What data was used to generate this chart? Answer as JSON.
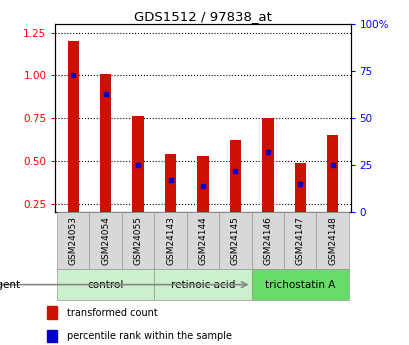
{
  "title": "GDS1512 / 97838_at",
  "samples": [
    "GSM24053",
    "GSM24054",
    "GSM24055",
    "GSM24143",
    "GSM24144",
    "GSM24145",
    "GSM24146",
    "GSM24147",
    "GSM24148"
  ],
  "red_values": [
    1.2,
    1.01,
    0.76,
    0.54,
    0.53,
    0.62,
    0.75,
    0.49,
    0.65
  ],
  "blue_pct": [
    73,
    63,
    25,
    17,
    14,
    22,
    32,
    15,
    25
  ],
  "group_labels": [
    "control",
    "retinoic acid",
    "trichostatin A"
  ],
  "group_ranges": [
    [
      0,
      3
    ],
    [
      3,
      6
    ],
    [
      6,
      9
    ]
  ],
  "group_colors": [
    "#ccf0cc",
    "#ccf0cc",
    "#66dd66"
  ],
  "ylim_left": [
    0.2,
    1.3
  ],
  "ylim_right": [
    0,
    100
  ],
  "yticks_left": [
    0.25,
    0.5,
    0.75,
    1.0,
    1.25
  ],
  "yticks_right": [
    0,
    25,
    50,
    75,
    100
  ],
  "bar_color": "#cc1100",
  "dot_color": "#0000cc",
  "agent_label": "agent",
  "legend1": "transformed count",
  "legend2": "percentile rank within the sample",
  "bar_width": 0.35
}
